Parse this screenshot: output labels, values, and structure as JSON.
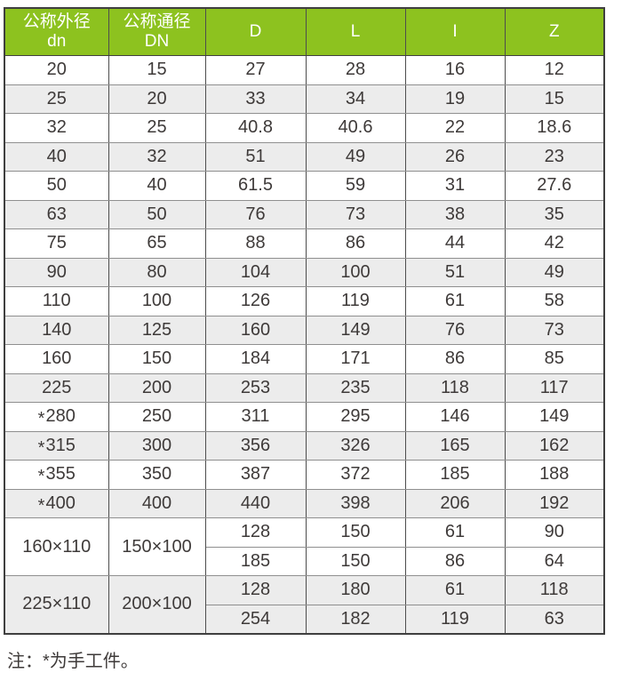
{
  "table": {
    "column_headers": [
      {
        "line1": "公称外径",
        "line2": "dn"
      },
      {
        "line1": "公称通径",
        "line2": "DN"
      },
      {
        "line1": "D"
      },
      {
        "line1": "L"
      },
      {
        "line1": "I"
      },
      {
        "line1": "Z"
      }
    ],
    "value_column_names": [
      "D",
      "L",
      "I",
      "Z"
    ],
    "rows": [
      {
        "dn": "20",
        "DN": "15",
        "values": [
          [
            "27",
            "28",
            "16",
            "12"
          ]
        ]
      },
      {
        "dn": "25",
        "DN": "20",
        "values": [
          [
            "33",
            "34",
            "19",
            "15"
          ]
        ]
      },
      {
        "dn": "32",
        "DN": "25",
        "values": [
          [
            "40.8",
            "40.6",
            "22",
            "18.6"
          ]
        ]
      },
      {
        "dn": "40",
        "DN": "32",
        "values": [
          [
            "51",
            "49",
            "26",
            "23"
          ]
        ]
      },
      {
        "dn": "50",
        "DN": "40",
        "values": [
          [
            "61.5",
            "59",
            "31",
            "27.6"
          ]
        ]
      },
      {
        "dn": "63",
        "DN": "50",
        "values": [
          [
            "76",
            "73",
            "38",
            "35"
          ]
        ]
      },
      {
        "dn": "75",
        "DN": "65",
        "values": [
          [
            "88",
            "86",
            "44",
            "42"
          ]
        ]
      },
      {
        "dn": "90",
        "DN": "80",
        "values": [
          [
            "104",
            "100",
            "51",
            "49"
          ]
        ]
      },
      {
        "dn": "110",
        "DN": "100",
        "values": [
          [
            "126",
            "119",
            "61",
            "58"
          ]
        ]
      },
      {
        "dn": "140",
        "DN": "125",
        "values": [
          [
            "160",
            "149",
            "76",
            "73"
          ]
        ]
      },
      {
        "dn": "160",
        "DN": "150",
        "values": [
          [
            "184",
            "171",
            "86",
            "85"
          ]
        ]
      },
      {
        "dn": "225",
        "DN": "200",
        "values": [
          [
            "253",
            "235",
            "118",
            "117"
          ]
        ]
      },
      {
        "dn": "*280",
        "DN": "250",
        "values": [
          [
            "311",
            "295",
            "146",
            "149"
          ]
        ]
      },
      {
        "dn": "*315",
        "DN": "300",
        "values": [
          [
            "356",
            "326",
            "165",
            "162"
          ]
        ]
      },
      {
        "dn": "*355",
        "DN": "350",
        "values": [
          [
            "387",
            "372",
            "185",
            "188"
          ]
        ]
      },
      {
        "dn": "*400",
        "DN": "400",
        "values": [
          [
            "440",
            "398",
            "206",
            "192"
          ]
        ]
      },
      {
        "dn": "160×110",
        "DN": "150×100",
        "values": [
          [
            "128",
            "150",
            "61",
            "90"
          ],
          [
            "185",
            "150",
            "86",
            "64"
          ]
        ]
      },
      {
        "dn": "225×110",
        "DN": "200×100",
        "values": [
          [
            "128",
            "180",
            "61",
            "118"
          ],
          [
            "254",
            "182",
            "119",
            "63"
          ]
        ]
      }
    ]
  },
  "note": "注：*为手工件。",
  "colors": {
    "header_bg": "#8dc21f",
    "header_text": "#ffffff",
    "row_alt_bg": "#ececec",
    "border_dark": "#4d4d4d",
    "border_light": "#8f8f8f",
    "text": "#3e3a39"
  }
}
